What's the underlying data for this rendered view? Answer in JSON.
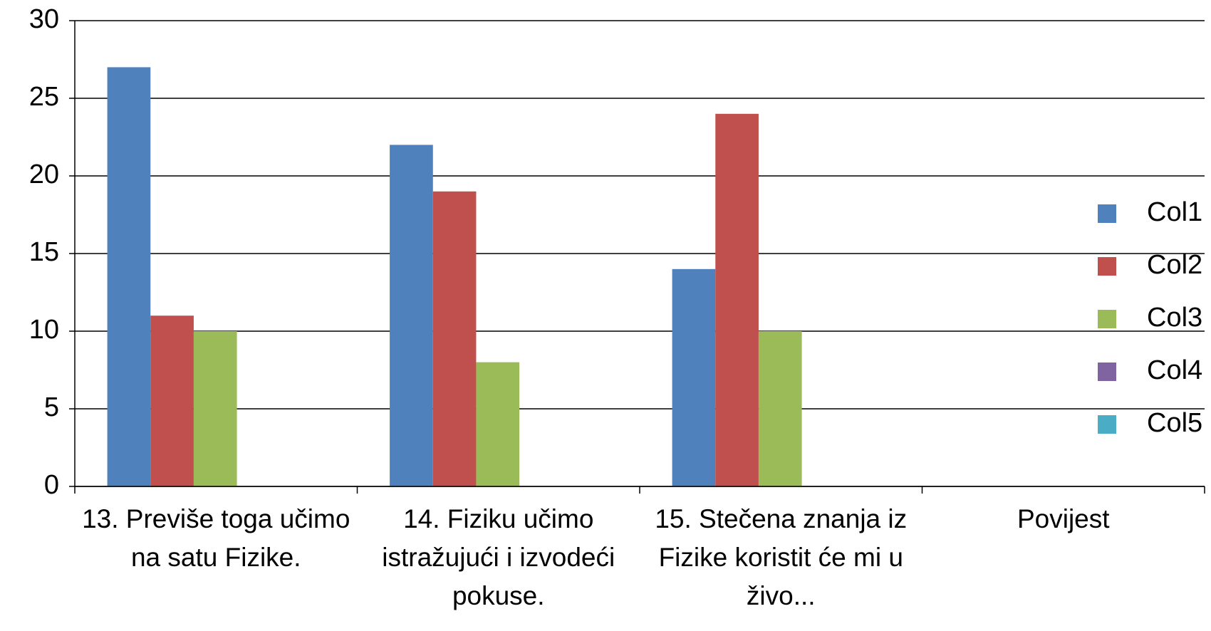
{
  "chart_data": {
    "type": "bar",
    "categories": [
      "13. Previše toga učimo na satu Fizike.",
      "14. Fiziku učimo istražujući i izvodeći pokuse.",
      "15. Stečena znanja iz Fizike koristit će mi u živo...",
      "Povijest"
    ],
    "series": [
      {
        "name": "Col1",
        "color": "#4f81bd",
        "values": [
          27,
          22,
          14,
          0
        ]
      },
      {
        "name": "Col2",
        "color": "#c0504d",
        "values": [
          11,
          19,
          24,
          0
        ]
      },
      {
        "name": "Col3",
        "color": "#9bbb59",
        "values": [
          10,
          8,
          10,
          0
        ]
      },
      {
        "name": "Col4",
        "color": "#8064a2",
        "values": [
          0,
          0,
          0,
          0
        ]
      },
      {
        "name": "Col5",
        "color": "#4bacc6",
        "values": [
          0,
          0,
          0,
          0
        ]
      }
    ],
    "ylim": [
      0,
      30
    ],
    "yticks": [
      0,
      5,
      10,
      15,
      20,
      25,
      30
    ],
    "grid": true,
    "legend": "right"
  }
}
